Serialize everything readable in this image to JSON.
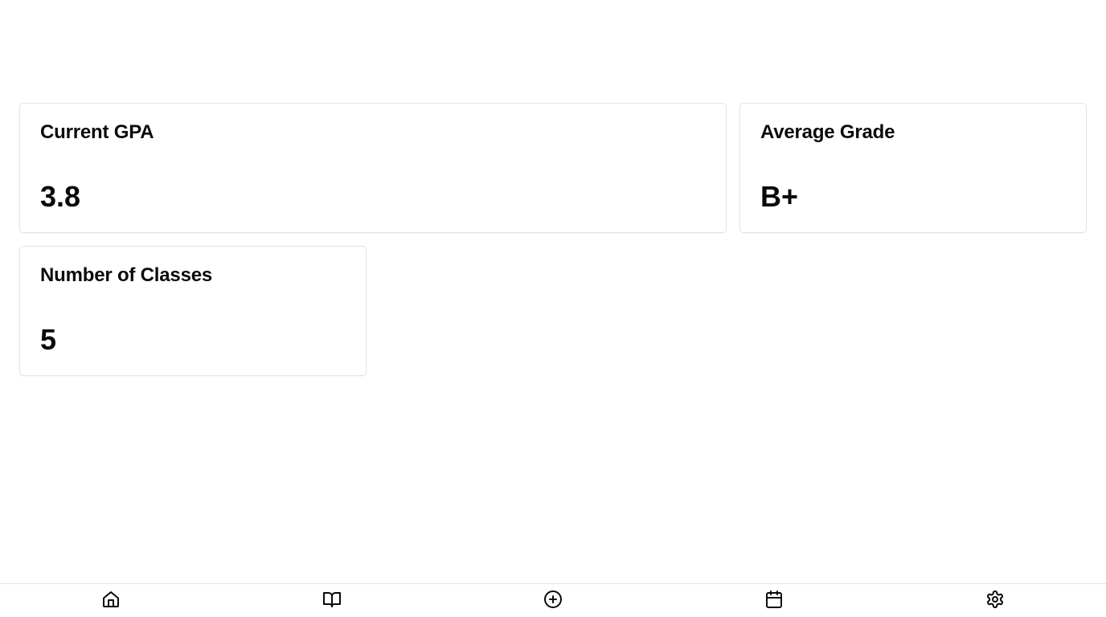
{
  "cards": [
    {
      "title": "Current GPA",
      "value": "3.8"
    },
    {
      "title": "Average Grade",
      "value": "B+"
    },
    {
      "title": "Number of Classes",
      "value": "5"
    }
  ],
  "bottom_nav": {
    "items": [
      {
        "icon": "home-icon"
      },
      {
        "icon": "book-open-icon"
      },
      {
        "icon": "plus-circle-icon"
      },
      {
        "icon": "calendar-icon"
      },
      {
        "icon": "gear-icon"
      }
    ]
  },
  "colors": {
    "text": "#0a0a0a",
    "border": "#e4e4e7",
    "background": "#ffffff"
  }
}
